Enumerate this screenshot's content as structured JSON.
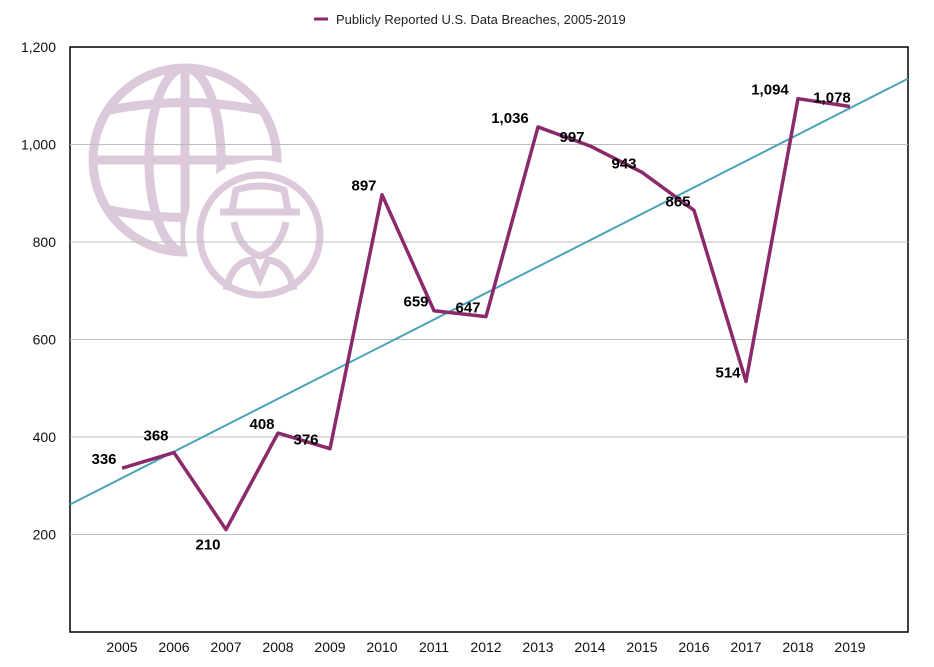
{
  "chart_data": {
    "type": "line",
    "title": "",
    "xlabel": "",
    "ylabel": "",
    "categories": [
      "2005",
      "2006",
      "2007",
      "2008",
      "2009",
      "2010",
      "2011",
      "2012",
      "2013",
      "2014",
      "2015",
      "2016",
      "2017",
      "2018",
      "2019"
    ],
    "series": [
      {
        "name": "Publicly Reported U.S. Data Breaches, 2005-2019",
        "values": [
          336,
          368,
          210,
          408,
          376,
          897,
          659,
          647,
          1036,
          997,
          943,
          865,
          514,
          1094,
          1078
        ],
        "labels": [
          "336",
          "368",
          "210",
          "408",
          "376",
          "897",
          "659",
          "647",
          "1,036",
          "997",
          "943",
          "865",
          "514",
          "1,094",
          "1,078"
        ]
      }
    ],
    "trendline": {
      "type": "linear",
      "color": "#4aa3b8"
    },
    "ylim": [
      0,
      1200
    ],
    "yticks": [
      200,
      400,
      600,
      800,
      1000,
      1200
    ],
    "ytick_labels": [
      "200",
      "400",
      "600",
      "800",
      "1,000",
      "1,200"
    ],
    "grid": true,
    "legend": "top-center",
    "colors": {
      "series": "#8b2a6b",
      "trend": "#4aa3b8",
      "watermark": "#dccadb",
      "grid": "#bdbdbd"
    },
    "watermark_icons": [
      "globe-icon",
      "hacker-icon"
    ]
  }
}
